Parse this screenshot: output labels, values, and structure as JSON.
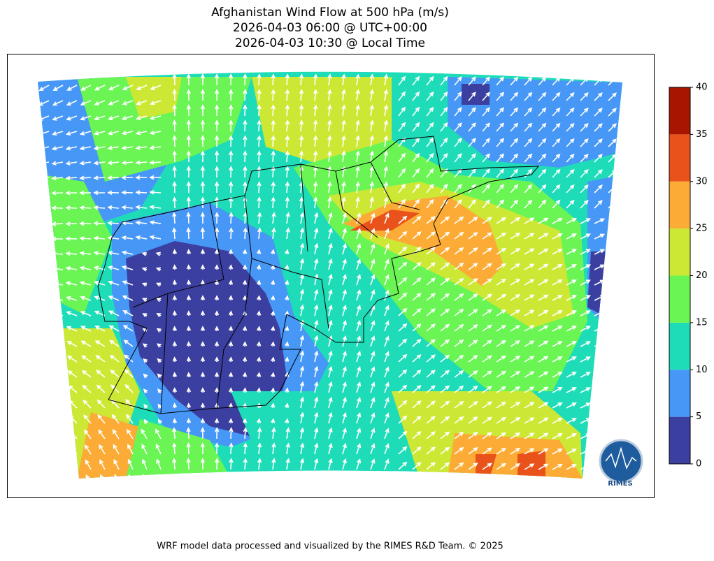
{
  "title": [
    "Afghanistan Wind Flow at 500 hPa (m/s)",
    "2026-04-03 06:00 @ UTC+00:00",
    "2026-04-03 10:30 @ Local Time"
  ],
  "colorbar": {
    "ticks": [
      0,
      5,
      10,
      15,
      20,
      25,
      30,
      35,
      40
    ],
    "colors": [
      "#3b3f9f",
      "#4797f6",
      "#1fdcb8",
      "#6af554",
      "#cde834",
      "#fcac36",
      "#e9521a",
      "#a81601"
    ]
  },
  "logo": "RIMES",
  "footer": "WRF model data processed and visualized by the RIMES R&D Team. © 2025"
}
